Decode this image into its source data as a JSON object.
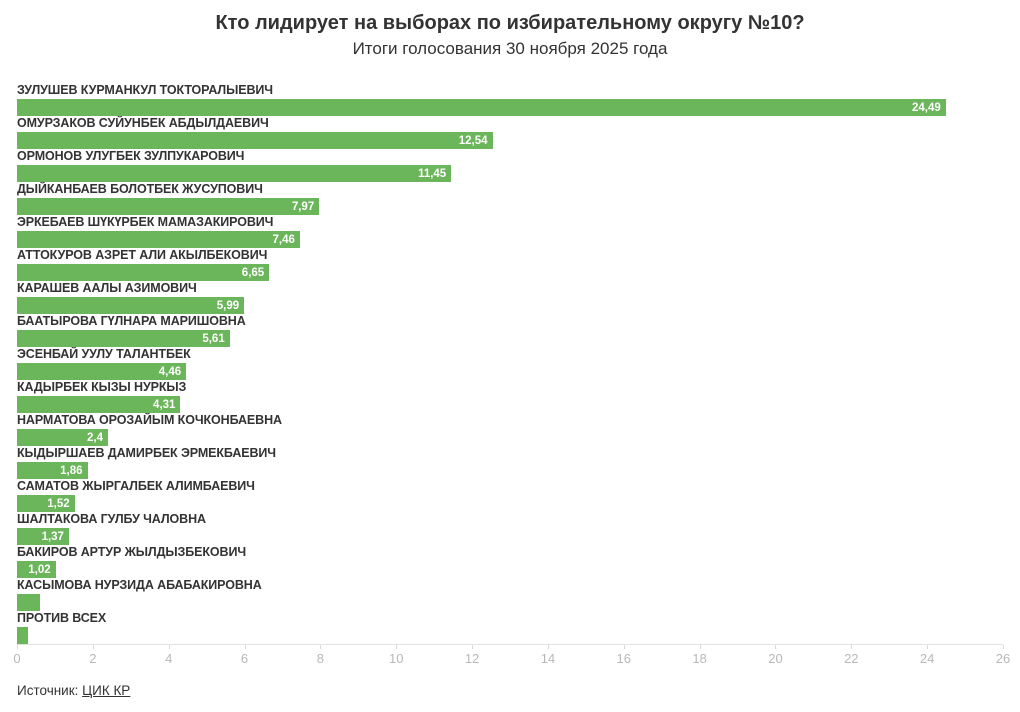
{
  "header": {
    "title": "Кто лидирует на выборах по избирательному округу №10?",
    "subtitle": "Итоги голосования 30 ноября 2025 года"
  },
  "footer": {
    "source_prefix": "Источник: ",
    "source_link": "ЦИК КР"
  },
  "colors": {
    "bar": "#6bb55b",
    "label_text": "#333333",
    "value_text": "#ffffff",
    "axis_text": "#b8b8b8",
    "axis_line": "#e2e2e2"
  },
  "chart_data": {
    "type": "bar",
    "orientation": "horizontal",
    "title": "Кто лидирует на выборах по избирательному округу №10?",
    "subtitle": "Итоги голосования 30 ноября 2025 года",
    "xlabel": "",
    "ylabel": "",
    "xlim": [
      0,
      26
    ],
    "x_ticks": [
      0,
      2,
      4,
      6,
      8,
      10,
      12,
      14,
      16,
      18,
      20,
      22,
      24,
      26
    ],
    "grid": false,
    "legend": false,
    "categories": [
      "ЗУЛУШЕВ КУРМАНКУЛ ТОКТОРАЛЫЕВИЧ",
      "ОМУРЗАКОВ СУЙУНБЕК АБДЫЛДАЕВИЧ",
      "ОРМОНОВ УЛУГБЕК ЗУЛПУКАРОВИЧ",
      "ДЫЙКАНБАЕВ БОЛОТБЕК ЖУСУПОВИЧ",
      "ЭРКЕБАЕВ ШҮКҮРБЕК МАМАЗАКИРОВИЧ",
      "АТТОКУРОВ АЗРЕТ АЛИ АКЫЛБЕКОВИЧ",
      "КАРАШЕВ ААЛЫ АЗИМОВИЧ",
      "БААТЫРОВА ГҮЛНАРА МАРИШОВНА",
      "ЭСЕНБАЙ УУЛУ ТАЛАНТБЕК",
      "КАДЫРБЕК КЫЗЫ НУРКЫЗ",
      "НАРМАТОВА ОРОЗАЙЫМ КОЧКОНБАЕВНА",
      "КЫДЫРШАЕВ ДАМИРБЕК ЭРМЕКБАЕВИЧ",
      "САМАТОВ ЖЫРГАЛБЕК АЛИМБАЕВИЧ",
      "ШАЛТАКОВА ГУЛБУ ЧАЛОВНА",
      "БАКИРОВ АРТУР ЖЫЛДЫЗБЕКОВИЧ",
      "КАСЫМОВА НУРЗИДА АБАБАКИРОВНА",
      "ПРОТИВ ВСЕХ"
    ],
    "values": [
      24.49,
      12.54,
      11.45,
      7.97,
      7.46,
      6.65,
      5.99,
      5.61,
      4.46,
      4.31,
      2.4,
      1.86,
      1.52,
      1.37,
      1.02,
      0.6,
      0.28
    ],
    "value_labels": [
      "24,49",
      "12,54",
      "11,45",
      "7,97",
      "7,46",
      "6,65",
      "5,99",
      "5,61",
      "4,46",
      "4,31",
      "2,4",
      "1,86",
      "1,52",
      "1,37",
      "1,02",
      "",
      ""
    ]
  }
}
